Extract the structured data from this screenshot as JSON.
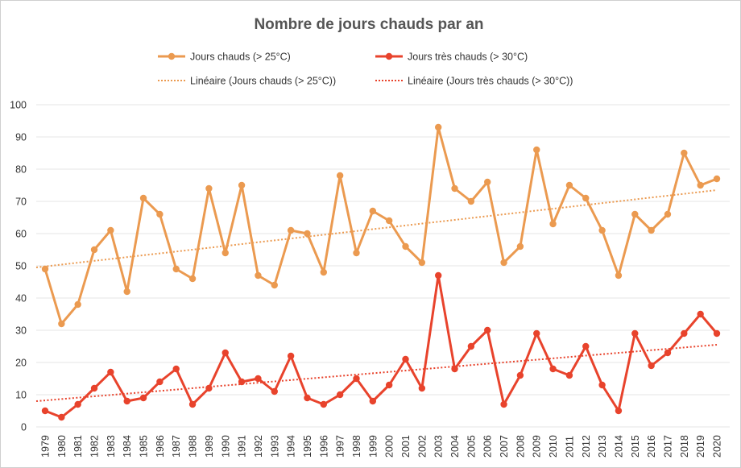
{
  "chart_data": {
    "type": "line",
    "title": "Nombre de jours chauds par an",
    "xlabel": "",
    "ylabel": "",
    "ylim": [
      0,
      100
    ],
    "yticks": [
      0,
      10,
      20,
      30,
      40,
      50,
      60,
      70,
      80,
      90,
      100
    ],
    "grid": true,
    "legend_position": "top",
    "categories": [
      "1979",
      "1980",
      "1981",
      "1982",
      "1983",
      "1984",
      "1985",
      "1986",
      "1987",
      "1988",
      "1989",
      "1990",
      "1991",
      "1992",
      "1993",
      "1994",
      "1995",
      "1996",
      "1997",
      "1998",
      "1999",
      "2000",
      "2001",
      "2002",
      "2003",
      "2004",
      "2005",
      "2006",
      "2007",
      "2008",
      "2009",
      "2010",
      "2011",
      "2012",
      "2013",
      "2014",
      "2015",
      "2016",
      "2017",
      "2018",
      "2019",
      "2020"
    ],
    "series": [
      {
        "name": "Jours chauds (> 25°C)",
        "color": "#eb9a50",
        "values": [
          49,
          32,
          38,
          55,
          61,
          42,
          71,
          66,
          49,
          46,
          74,
          54,
          75,
          47,
          44,
          61,
          60,
          48,
          78,
          54,
          67,
          64,
          56,
          51,
          93,
          74,
          70,
          76,
          51,
          56,
          86,
          63,
          75,
          71,
          61,
          47,
          66,
          61,
          66,
          85,
          75,
          77
        ]
      },
      {
        "name": "Jours très chauds (> 30°C)",
        "color": "#e8432c",
        "values": [
          5,
          3,
          7,
          12,
          17,
          8,
          9,
          14,
          18,
          7,
          12,
          23,
          14,
          15,
          11,
          22,
          9,
          7,
          10,
          15,
          8,
          13,
          21,
          12,
          47,
          18,
          25,
          30,
          7,
          16,
          29,
          18,
          16,
          25,
          13,
          5,
          29,
          19,
          23,
          29,
          35,
          29
        ]
      }
    ],
    "trendlines": [
      {
        "name": "Linéaire (Jours chauds (> 25°C))",
        "color": "#eb9a50",
        "start": 49.5,
        "end": 73.5
      },
      {
        "name": "Linéaire (Jours très chauds (> 30°C))",
        "color": "#e8432c",
        "start": 8,
        "end": 25.5
      }
    ]
  }
}
